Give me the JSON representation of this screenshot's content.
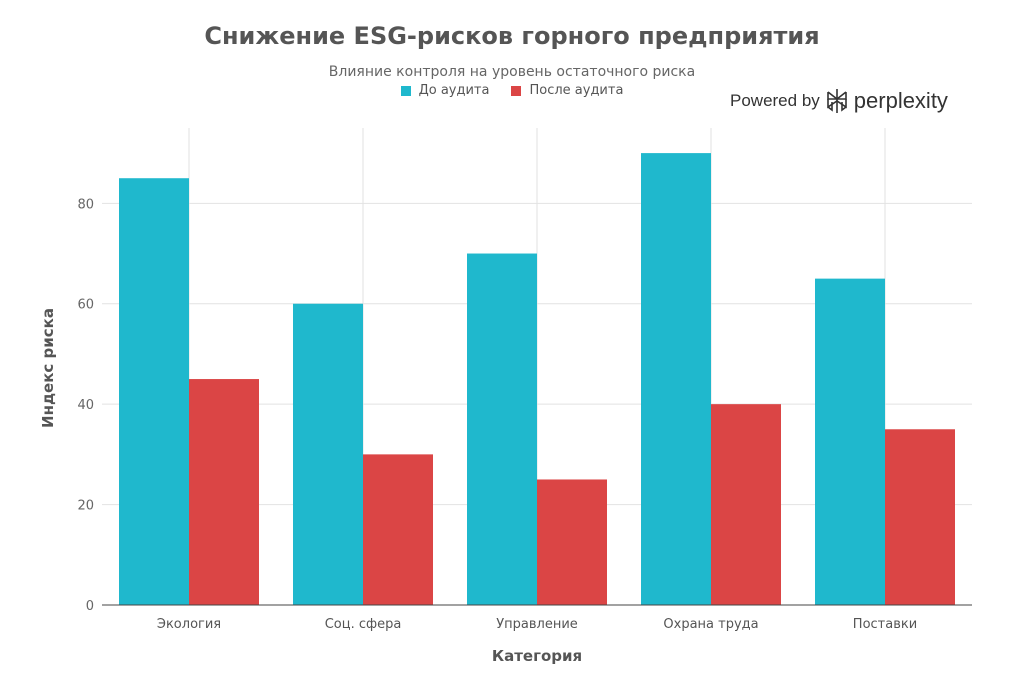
{
  "chart_data": {
    "type": "bar",
    "title": "Снижение ESG-рисков горного предприятия",
    "subtitle": "Влияние контроля на уровень остаточного риска",
    "xlabel": "Категория",
    "ylabel": "Индекс риска",
    "categories": [
      "Экология",
      "Соц. сфера",
      "Управление",
      "Охрана труда",
      "Поставки"
    ],
    "series": [
      {
        "name": "До аудита",
        "values": [
          85,
          60,
          70,
          90,
          65
        ],
        "color": "#1FB8CD"
      },
      {
        "name": "После аудита",
        "values": [
          45,
          30,
          25,
          40,
          35
        ],
        "color": "#DB4545"
      }
    ],
    "ylim": [
      0,
      95
    ],
    "yticks": [
      0,
      20,
      40,
      60,
      80
    ],
    "grid": true,
    "legend_position": "top-center"
  },
  "watermark": {
    "prefix": "Powered by",
    "brand": "perplexity",
    "icon": "perplexity-logo-icon"
  }
}
